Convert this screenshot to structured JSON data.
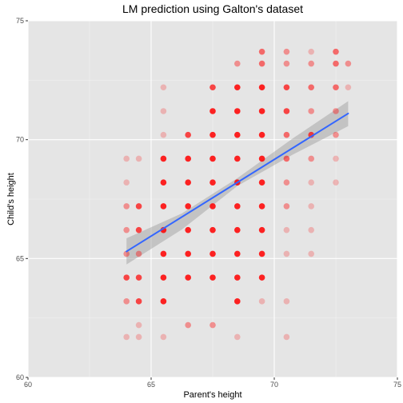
{
  "chart_data": {
    "type": "scatter",
    "title": "LM prediction using Galton's dataset",
    "xlabel": "Parent's height",
    "ylabel": "Child's height",
    "xlim": [
      60,
      75
    ],
    "ylim": [
      60,
      75
    ],
    "xticks": [
      60,
      65,
      70,
      75
    ],
    "yticks": [
      60,
      65,
      70,
      75
    ],
    "grid": true,
    "colors": {
      "panel": "#e5e5e5",
      "grid_major": "#ffffff",
      "grid_minor": "#f1f1f1",
      "points": "#ff0000",
      "fit_line": "#3366ff",
      "ribbon": "#999999"
    },
    "points": [
      {
        "x": 64.0,
        "y": 61.7,
        "w": 1
      },
      {
        "x": 64.0,
        "y": 63.2,
        "w": 2
      },
      {
        "x": 64.0,
        "y": 64.2,
        "w": 4
      },
      {
        "x": 64.0,
        "y": 65.2,
        "w": 2
      },
      {
        "x": 64.0,
        "y": 66.2,
        "w": 2
      },
      {
        "x": 64.0,
        "y": 67.2,
        "w": 2
      },
      {
        "x": 64.0,
        "y": 68.2,
        "w": 1
      },
      {
        "x": 64.0,
        "y": 69.2,
        "w": 1
      },
      {
        "x": 64.5,
        "y": 61.7,
        "w": 1
      },
      {
        "x": 64.5,
        "y": 62.2,
        "w": 1
      },
      {
        "x": 64.5,
        "y": 63.2,
        "w": 4
      },
      {
        "x": 64.5,
        "y": 64.2,
        "w": 4
      },
      {
        "x": 64.5,
        "y": 65.2,
        "w": 2
      },
      {
        "x": 64.5,
        "y": 66.2,
        "w": 4
      },
      {
        "x": 64.5,
        "y": 67.2,
        "w": 4
      },
      {
        "x": 64.5,
        "y": 69.2,
        "w": 1
      },
      {
        "x": 65.5,
        "y": 61.7,
        "w": 1
      },
      {
        "x": 65.5,
        "y": 63.2,
        "w": 5
      },
      {
        "x": 65.5,
        "y": 64.2,
        "w": 5
      },
      {
        "x": 65.5,
        "y": 65.2,
        "w": 5
      },
      {
        "x": 65.5,
        "y": 66.2,
        "w": 5
      },
      {
        "x": 65.5,
        "y": 67.2,
        "w": 5
      },
      {
        "x": 65.5,
        "y": 68.2,
        "w": 5
      },
      {
        "x": 65.5,
        "y": 69.2,
        "w": 5
      },
      {
        "x": 65.5,
        "y": 70.2,
        "w": 1
      },
      {
        "x": 65.5,
        "y": 71.2,
        "w": 1
      },
      {
        "x": 65.5,
        "y": 72.2,
        "w": 1
      },
      {
        "x": 66.5,
        "y": 62.2,
        "w": 2
      },
      {
        "x": 66.5,
        "y": 64.2,
        "w": 5
      },
      {
        "x": 66.5,
        "y": 65.2,
        "w": 5
      },
      {
        "x": 66.5,
        "y": 66.2,
        "w": 5
      },
      {
        "x": 66.5,
        "y": 67.2,
        "w": 5
      },
      {
        "x": 66.5,
        "y": 68.2,
        "w": 5
      },
      {
        "x": 66.5,
        "y": 69.2,
        "w": 5
      },
      {
        "x": 66.5,
        "y": 70.2,
        "w": 4
      },
      {
        "x": 67.5,
        "y": 62.2,
        "w": 2
      },
      {
        "x": 67.5,
        "y": 64.2,
        "w": 5
      },
      {
        "x": 67.5,
        "y": 65.2,
        "w": 5
      },
      {
        "x": 67.5,
        "y": 66.2,
        "w": 5
      },
      {
        "x": 67.5,
        "y": 67.2,
        "w": 5
      },
      {
        "x": 67.5,
        "y": 68.2,
        "w": 5
      },
      {
        "x": 67.5,
        "y": 69.2,
        "w": 5
      },
      {
        "x": 67.5,
        "y": 70.2,
        "w": 5
      },
      {
        "x": 67.5,
        "y": 71.2,
        "w": 5
      },
      {
        "x": 67.5,
        "y": 72.2,
        "w": 4
      },
      {
        "x": 68.5,
        "y": 61.7,
        "w": 1
      },
      {
        "x": 68.5,
        "y": 63.2,
        "w": 5
      },
      {
        "x": 68.5,
        "y": 64.2,
        "w": 5
      },
      {
        "x": 68.5,
        "y": 65.2,
        "w": 5
      },
      {
        "x": 68.5,
        "y": 66.2,
        "w": 5
      },
      {
        "x": 68.5,
        "y": 67.2,
        "w": 5
      },
      {
        "x": 68.5,
        "y": 68.2,
        "w": 5
      },
      {
        "x": 68.5,
        "y": 69.2,
        "w": 5
      },
      {
        "x": 68.5,
        "y": 70.2,
        "w": 5
      },
      {
        "x": 68.5,
        "y": 71.2,
        "w": 5
      },
      {
        "x": 68.5,
        "y": 72.2,
        "w": 5
      },
      {
        "x": 68.5,
        "y": 73.2,
        "w": 2
      },
      {
        "x": 69.5,
        "y": 63.2,
        "w": 1
      },
      {
        "x": 69.5,
        "y": 64.2,
        "w": 5
      },
      {
        "x": 69.5,
        "y": 65.2,
        "w": 5
      },
      {
        "x": 69.5,
        "y": 66.2,
        "w": 5
      },
      {
        "x": 69.5,
        "y": 67.2,
        "w": 5
      },
      {
        "x": 69.5,
        "y": 68.2,
        "w": 5
      },
      {
        "x": 69.5,
        "y": 69.2,
        "w": 5
      },
      {
        "x": 69.5,
        "y": 70.2,
        "w": 5
      },
      {
        "x": 69.5,
        "y": 71.2,
        "w": 5
      },
      {
        "x": 69.5,
        "y": 72.2,
        "w": 5
      },
      {
        "x": 69.5,
        "y": 73.2,
        "w": 3
      },
      {
        "x": 69.5,
        "y": 73.7,
        "w": 3
      },
      {
        "x": 70.5,
        "y": 61.7,
        "w": 1
      },
      {
        "x": 70.5,
        "y": 63.2,
        "w": 1
      },
      {
        "x": 70.5,
        "y": 65.2,
        "w": 1
      },
      {
        "x": 70.5,
        "y": 66.2,
        "w": 1
      },
      {
        "x": 70.5,
        "y": 67.2,
        "w": 2
      },
      {
        "x": 70.5,
        "y": 68.2,
        "w": 2
      },
      {
        "x": 70.5,
        "y": 69.2,
        "w": 3
      },
      {
        "x": 70.5,
        "y": 70.2,
        "w": 3
      },
      {
        "x": 70.5,
        "y": 71.2,
        "w": 4
      },
      {
        "x": 70.5,
        "y": 72.2,
        "w": 4
      },
      {
        "x": 70.5,
        "y": 73.2,
        "w": 2
      },
      {
        "x": 70.5,
        "y": 73.7,
        "w": 2
      },
      {
        "x": 71.5,
        "y": 65.2,
        "w": 1
      },
      {
        "x": 71.5,
        "y": 66.2,
        "w": 1
      },
      {
        "x": 71.5,
        "y": 67.2,
        "w": 1
      },
      {
        "x": 71.5,
        "y": 68.2,
        "w": 1
      },
      {
        "x": 71.5,
        "y": 69.2,
        "w": 2
      },
      {
        "x": 71.5,
        "y": 70.2,
        "w": 4
      },
      {
        "x": 71.5,
        "y": 71.2,
        "w": 2
      },
      {
        "x": 71.5,
        "y": 72.2,
        "w": 3
      },
      {
        "x": 71.5,
        "y": 73.2,
        "w": 2
      },
      {
        "x": 71.5,
        "y": 73.7,
        "w": 1
      },
      {
        "x": 72.5,
        "y": 68.2,
        "w": 1
      },
      {
        "x": 72.5,
        "y": 69.2,
        "w": 1
      },
      {
        "x": 72.5,
        "y": 70.2,
        "w": 2
      },
      {
        "x": 72.5,
        "y": 71.2,
        "w": 2
      },
      {
        "x": 72.5,
        "y": 72.2,
        "w": 3
      },
      {
        "x": 72.5,
        "y": 73.2,
        "w": 3
      },
      {
        "x": 72.5,
        "y": 73.7,
        "w": 3
      },
      {
        "x": 73.0,
        "y": 72.2,
        "w": 1
      },
      {
        "x": 73.0,
        "y": 73.2,
        "w": 2
      }
    ],
    "fit_line": {
      "x": [
        64.0,
        73.0
      ],
      "y": [
        65.3,
        71.1
      ]
    },
    "confidence_band": {
      "x": [
        64.0,
        66.25,
        68.5,
        70.75,
        73.0
      ],
      "upper": [
        65.85,
        66.9,
        68.38,
        70.05,
        71.62
      ],
      "lower": [
        64.75,
        66.22,
        68.05,
        69.37,
        70.57
      ]
    }
  }
}
